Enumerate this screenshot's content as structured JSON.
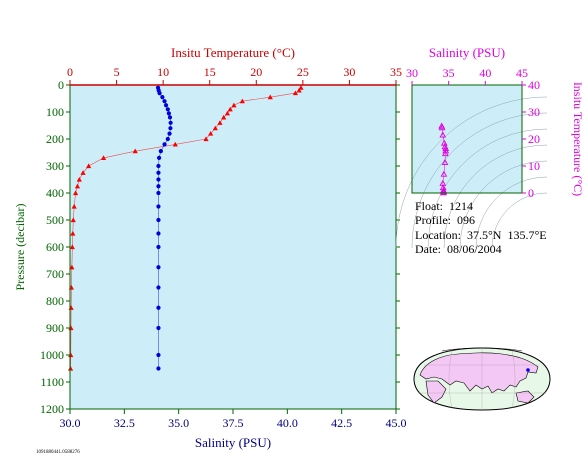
{
  "chart_data": [
    {
      "type": "scatter",
      "name": "profile",
      "ylabel": "Pressure (decibar)",
      "y_range": [
        0,
        1200
      ],
      "y_reversed": true,
      "y_ticks": [
        "0",
        "100",
        "200",
        "300",
        "400",
        "500",
        "600",
        "700",
        "800",
        "900",
        "1000",
        "1100",
        "1200"
      ],
      "top_axis": {
        "label": "Insitu Temperature (°C)",
        "range": [
          0,
          35
        ],
        "ticks": [
          "0",
          "5",
          "10",
          "15",
          "20",
          "25",
          "30",
          "35"
        ],
        "color": "#cc0000"
      },
      "bottom_axis": {
        "label": "Salinity (PSU)",
        "range": [
          30.0,
          45.0
        ],
        "ticks": [
          "30.0",
          "32.5",
          "35.0",
          "37.5",
          "40.0",
          "42.5",
          "45.0"
        ],
        "color": "#000080"
      },
      "series": [
        {
          "marker": "triangle",
          "color": "#ff0000",
          "axis": "temperature",
          "points": [
            {
              "x": 24.8,
              "y": 10
            },
            {
              "x": 24.6,
              "y": 20
            },
            {
              "x": 24.2,
              "y": 30
            },
            {
              "x": 21.5,
              "y": 45
            },
            {
              "x": 18.5,
              "y": 60
            },
            {
              "x": 17.6,
              "y": 75
            },
            {
              "x": 17.2,
              "y": 90
            },
            {
              "x": 16.9,
              "y": 105
            },
            {
              "x": 16.5,
              "y": 120
            },
            {
              "x": 16.1,
              "y": 140
            },
            {
              "x": 15.6,
              "y": 160
            },
            {
              "x": 15.1,
              "y": 180
            },
            {
              "x": 14.6,
              "y": 200
            },
            {
              "x": 11.3,
              "y": 220
            },
            {
              "x": 7.0,
              "y": 245
            },
            {
              "x": 3.6,
              "y": 270
            },
            {
              "x": 2.0,
              "y": 300
            },
            {
              "x": 1.4,
              "y": 325
            },
            {
              "x": 1.0,
              "y": 350
            },
            {
              "x": 0.8,
              "y": 375
            },
            {
              "x": 0.6,
              "y": 400
            },
            {
              "x": 0.45,
              "y": 450
            },
            {
              "x": 0.35,
              "y": 500
            },
            {
              "x": 0.3,
              "y": 550
            },
            {
              "x": 0.25,
              "y": 600
            },
            {
              "x": 0.2,
              "y": 675
            },
            {
              "x": 0.15,
              "y": 750
            },
            {
              "x": 0.12,
              "y": 825
            },
            {
              "x": 0.1,
              "y": 900
            },
            {
              "x": 0.08,
              "y": 1000
            },
            {
              "x": 0.06,
              "y": 1050
            }
          ]
        },
        {
          "marker": "circle",
          "color": "#0000dd",
          "axis": "salinity",
          "points": [
            {
              "x": 34.05,
              "y": 10
            },
            {
              "x": 34.08,
              "y": 20
            },
            {
              "x": 34.12,
              "y": 30
            },
            {
              "x": 34.25,
              "y": 45
            },
            {
              "x": 34.35,
              "y": 60
            },
            {
              "x": 34.42,
              "y": 75
            },
            {
              "x": 34.5,
              "y": 90
            },
            {
              "x": 34.55,
              "y": 105
            },
            {
              "x": 34.6,
              "y": 120
            },
            {
              "x": 34.63,
              "y": 140
            },
            {
              "x": 34.62,
              "y": 160
            },
            {
              "x": 34.58,
              "y": 180
            },
            {
              "x": 34.5,
              "y": 200
            },
            {
              "x": 34.35,
              "y": 220
            },
            {
              "x": 34.18,
              "y": 245
            },
            {
              "x": 34.1,
              "y": 270
            },
            {
              "x": 34.07,
              "y": 300
            },
            {
              "x": 34.07,
              "y": 325
            },
            {
              "x": 34.07,
              "y": 350
            },
            {
              "x": 34.07,
              "y": 375
            },
            {
              "x": 34.07,
              "y": 400
            },
            {
              "x": 34.07,
              "y": 450
            },
            {
              "x": 34.07,
              "y": 500
            },
            {
              "x": 34.07,
              "y": 550
            },
            {
              "x": 34.07,
              "y": 600
            },
            {
              "x": 34.07,
              "y": 675
            },
            {
              "x": 34.07,
              "y": 750
            },
            {
              "x": 34.07,
              "y": 825
            },
            {
              "x": 34.07,
              "y": 900
            },
            {
              "x": 34.07,
              "y": 1000
            },
            {
              "x": 34.07,
              "y": 1050
            }
          ]
        }
      ]
    },
    {
      "type": "scatter",
      "name": "ts-diagram",
      "xlabel": "Salinity (PSU)",
      "ylabel": "Insitu Temperature (°C)",
      "x_range": [
        30,
        45
      ],
      "y_range": [
        0,
        40
      ],
      "x_ticks": [
        "30",
        "35",
        "40",
        "45"
      ],
      "y_ticks": [
        "0",
        "10",
        "20",
        "30",
        "40"
      ],
      "color": "#e000e0",
      "marker": "triangle",
      "points": [
        {
          "x": 34.3,
          "y": 0.1
        },
        {
          "x": 34.3,
          "y": 0.3
        },
        {
          "x": 34.3,
          "y": 0.6
        },
        {
          "x": 34.3,
          "y": 1.0
        },
        {
          "x": 34.25,
          "y": 2.0
        },
        {
          "x": 34.2,
          "y": 3.6
        },
        {
          "x": 34.35,
          "y": 7.0
        },
        {
          "x": 34.5,
          "y": 11.3
        },
        {
          "x": 34.55,
          "y": 14.6
        },
        {
          "x": 34.6,
          "y": 15.6
        },
        {
          "x": 34.6,
          "y": 16.5
        },
        {
          "x": 34.5,
          "y": 17.2
        },
        {
          "x": 34.4,
          "y": 18.5
        },
        {
          "x": 34.2,
          "y": 21.5
        },
        {
          "x": 34.1,
          "y": 24.2
        },
        {
          "x": 34.05,
          "y": 24.8
        }
      ]
    }
  ],
  "float_info": {
    "float_label": "Float:",
    "float_value": "1214",
    "profile_label": "Profile:",
    "profile_value": "096",
    "location_label": "Location:",
    "lat": "37.5°N",
    "lon": "135.7°E",
    "date_label": "Date:",
    "date_value": "08/06/2004"
  },
  "footer_code": "1091880441.0588276",
  "colors": {
    "plot_bg": "#cdeef8",
    "axis_green": "#006600",
    "temp_red": "#cc0000",
    "salinity_blue": "#000080",
    "ts_magenta": "#e000e0",
    "map_land": "#f4c8f4",
    "map_ocean": "#e8f8e8"
  }
}
